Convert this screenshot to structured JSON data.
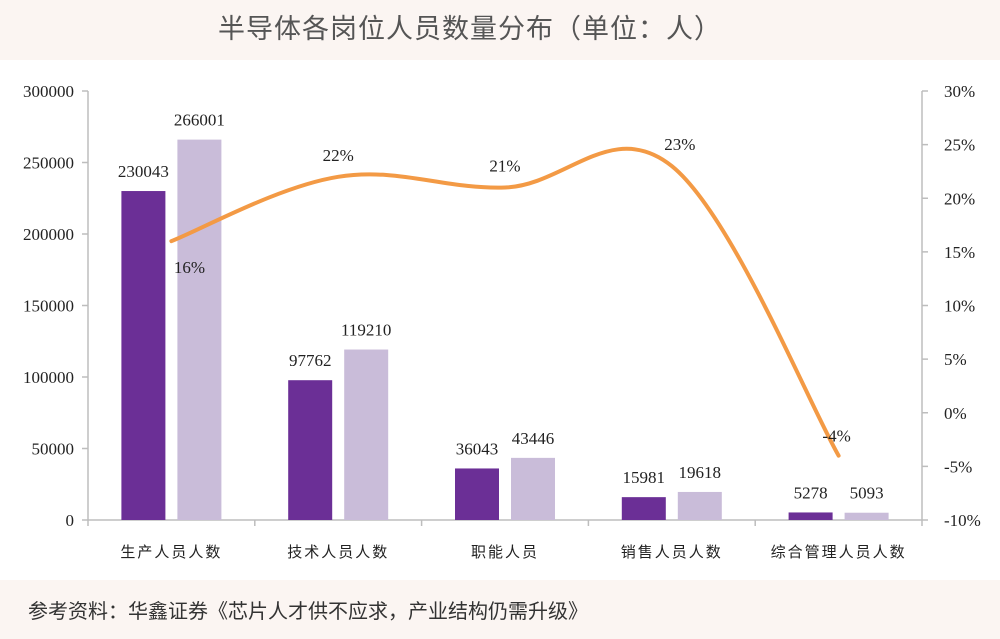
{
  "title": "半导体各岗位人员数量分布（单位：人）",
  "source": "参考资料：华鑫证券《芯片人才供不应求，产业结构仍需升级》",
  "chart_data": {
    "type": "bar",
    "categories": [
      "生产人员人数",
      "技术人员人数",
      "职能人员",
      "销售人员人数",
      "综合管理人员人数"
    ],
    "series": [
      {
        "type": "bar",
        "values": [
          230043,
          97762,
          36043,
          15981,
          5278
        ],
        "color": "#6b2f96"
      },
      {
        "type": "bar",
        "values": [
          266001,
          119210,
          43446,
          19618,
          5093
        ],
        "color": "#c9bcd9"
      },
      {
        "type": "line",
        "axis": "right",
        "values": [
          16,
          22,
          21,
          23,
          -4
        ],
        "labels": [
          "16%",
          "22%",
          "21%",
          "23%",
          "-4%"
        ],
        "color": "#f39a45"
      }
    ],
    "ylim": [
      0,
      300000
    ],
    "yticks": [
      "0",
      "50000",
      "100000",
      "150000",
      "200000",
      "250000",
      "300000"
    ],
    "y2lim": [
      -10,
      30
    ],
    "y2ticks": [
      "-10%",
      "-5%",
      "0%",
      "5%",
      "10%",
      "15%",
      "20%",
      "25%",
      "30%"
    ],
    "grid": false,
    "legend": "none"
  }
}
